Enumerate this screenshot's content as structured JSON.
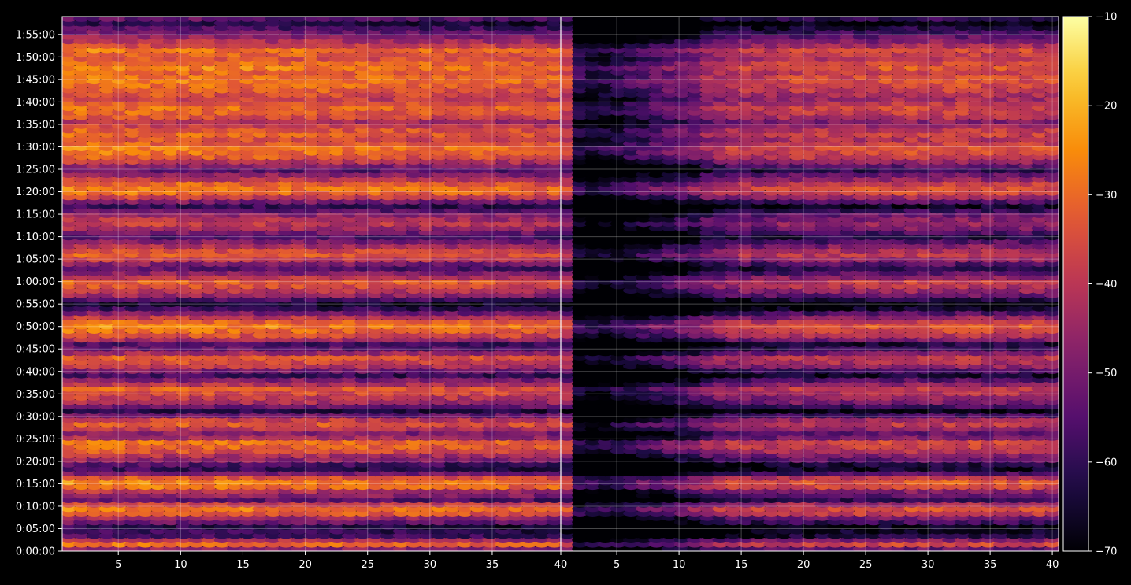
{
  "chart_data": {
    "type": "heatmap",
    "title": "",
    "xlabel": "",
    "ylabel": "",
    "colormap": "inferno",
    "background": "#000000",
    "grid": true,
    "panels": [
      {
        "name": "",
        "xlim": [
          1,
          40
        ],
        "x_ticks": [
          "5",
          "10",
          "15",
          "20",
          "25",
          "30",
          "35"
        ],
        "x_tick_values": [
          5,
          10,
          15,
          20,
          25,
          30,
          35
        ],
        "boundary_tick": "40"
      },
      {
        "name": "",
        "xlim": [
          1,
          40
        ],
        "x_ticks": [
          "5",
          "10",
          "15",
          "20",
          "25",
          "30",
          "35",
          "40"
        ],
        "x_tick_values": [
          5,
          10,
          15,
          20,
          25,
          30,
          35,
          40
        ]
      }
    ],
    "ylim_minutes": [
      0,
      119
    ],
    "y_ticks": [
      "0:00:00",
      "0:05:00",
      "0:10:00",
      "0:15:00",
      "0:20:00",
      "0:25:00",
      "0:30:00",
      "0:35:00",
      "0:40:00",
      "0:45:00",
      "0:50:00",
      "0:55:00",
      "1:00:00",
      "1:05:00",
      "1:10:00",
      "1:15:00",
      "1:20:00",
      "1:25:00",
      "1:30:00",
      "1:35:00",
      "1:40:00",
      "1:45:00",
      "1:50:00",
      "1:55:00"
    ],
    "y_tick_values_minutes": [
      0,
      5,
      10,
      15,
      20,
      25,
      30,
      35,
      40,
      45,
      50,
      55,
      60,
      65,
      70,
      75,
      80,
      85,
      90,
      95,
      100,
      105,
      110,
      115
    ],
    "colorbar": {
      "range": [
        -70,
        -10
      ],
      "ticks": [
        "−10",
        "−20",
        "−30",
        "−40",
        "−50",
        "−60",
        "−70"
      ],
      "tick_values": [
        -10,
        -20,
        -30,
        -40,
        -50,
        -60,
        -70
      ]
    },
    "row_levels": [
      -45,
      -28,
      -40,
      -55,
      -58,
      -60,
      -50,
      -43,
      -30,
      -26,
      -35,
      -52,
      -45,
      -40,
      -27,
      -25,
      -32,
      -48,
      -58,
      -55,
      -45,
      -40,
      -33,
      -29,
      -27,
      -42,
      -46,
      -38,
      -31,
      -36,
      -49,
      -60,
      -50,
      -41,
      -37,
      -33,
      -30,
      -39,
      -47,
      -57,
      -48,
      -38,
      -34,
      -31,
      -42,
      -52,
      -55,
      -42,
      -33,
      -28,
      -25,
      -30,
      -38,
      -48,
      -58,
      -63,
      -55,
      -44,
      -38,
      -33,
      -30,
      -38,
      -46,
      -53,
      -47,
      -37,
      -31,
      -34,
      -40,
      -47,
      -54,
      -48,
      -42,
      -37,
      -40,
      -44,
      -52,
      -58,
      -48,
      -36,
      -28,
      -26,
      -30,
      -38,
      -44,
      -52,
      -46,
      -38,
      -31,
      -28,
      -26,
      -30,
      -33,
      -29,
      -31,
      -36,
      -40,
      -33,
      -30,
      -28,
      -31,
      -36,
      -33,
      -30,
      -28,
      -26,
      -27,
      -29,
      -25,
      -28,
      -32,
      -30,
      -27,
      -35,
      -40,
      -45,
      -50,
      -55,
      -60,
      -52
    ],
    "column_profile_panel2": [
      -3,
      -28,
      -30,
      -30,
      -28,
      -25,
      -22,
      -20,
      -18,
      -16,
      -15,
      -10,
      -8,
      -6,
      -5,
      -6,
      -5,
      -4,
      -3,
      -3,
      -3,
      -2,
      -2,
      -2,
      -2,
      -1,
      -1,
      0,
      0,
      0,
      0,
      0,
      0,
      0,
      0,
      0,
      0,
      0,
      0
    ]
  }
}
